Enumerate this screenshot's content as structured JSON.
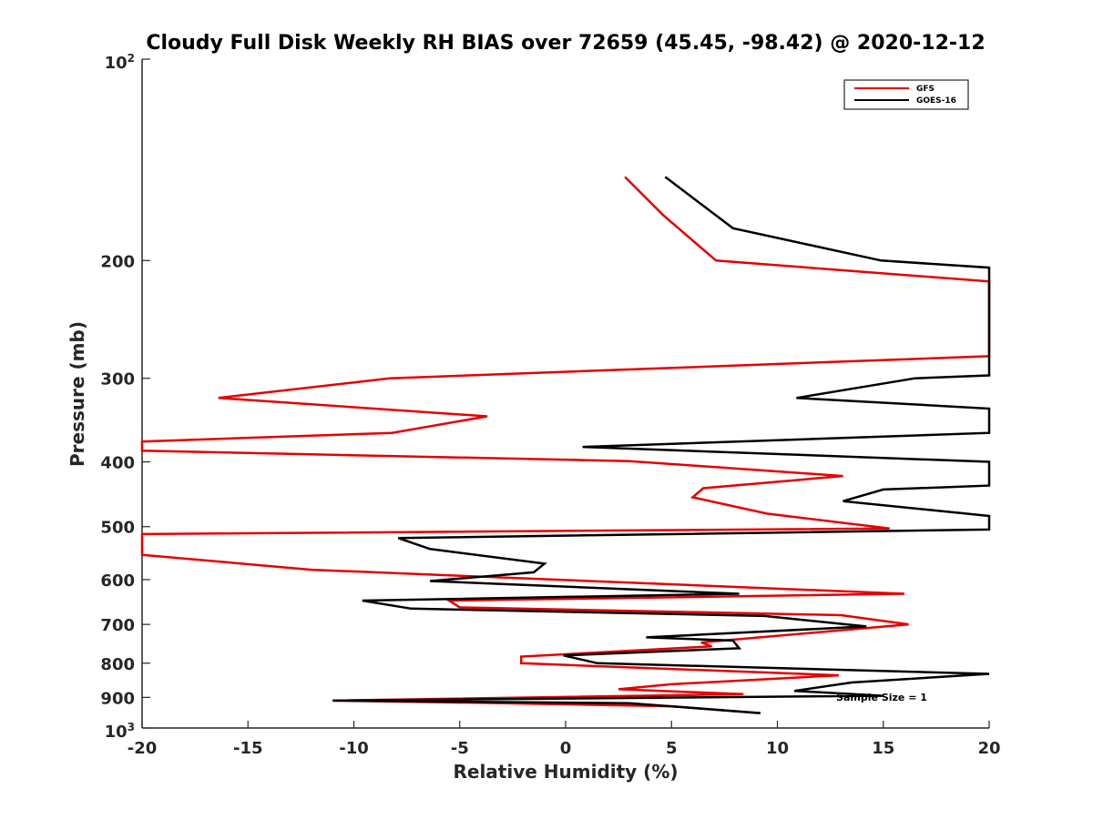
{
  "chart_data": {
    "type": "line",
    "title": "Cloudy Full Disk Weekly RH BIAS over 72659 (45.45, -98.42) @ 2020-12-12",
    "xlabel": "Relative Humidity (%)",
    "ylabel": "Pressure (mb)",
    "xlim": [
      -20,
      20
    ],
    "ylim": [
      100,
      1000
    ],
    "yscale": "log",
    "y_reversed": true,
    "grid": false,
    "legend_position": "top-right",
    "x_ticks": [
      "-20",
      "-15",
      "-10",
      "-5",
      "0",
      "5",
      "10",
      "15",
      "20"
    ],
    "y_ticks": [
      "200",
      "300",
      "400",
      "500",
      "600",
      "700",
      "800",
      "900"
    ],
    "y_tick_ends": {
      "top_base": "10",
      "top_exp": "2",
      "bottom_base": "10",
      "bottom_exp": "3"
    },
    "annotation": "Sample Size = 1",
    "series": [
      {
        "name": "GFS",
        "color": "#e50000",
        "points": [
          [
            2.8,
            150
          ],
          [
            4.6,
            171
          ],
          [
            7.1,
            200
          ],
          [
            20,
            215
          ],
          [
            20,
            278
          ],
          [
            -8.3,
            300
          ],
          [
            -16.4,
            321
          ],
          [
            -3.7,
            342
          ],
          [
            -8.2,
            362
          ],
          [
            -20,
            373
          ],
          [
            -20,
            385
          ],
          [
            3.0,
            399
          ],
          [
            13.1,
            420
          ],
          [
            6.5,
            438
          ],
          [
            6.0,
            452
          ],
          [
            9.5,
            478
          ],
          [
            15.3,
            503
          ],
          [
            -20,
            513
          ],
          [
            -20,
            551
          ],
          [
            -12,
            580
          ],
          [
            16.0,
            630
          ],
          [
            -5.5,
            645
          ],
          [
            -5.0,
            660
          ],
          [
            13.0,
            678
          ],
          [
            16.2,
            700
          ],
          [
            6.4,
            745
          ],
          [
            6.9,
            755
          ],
          [
            -2.1,
            782
          ],
          [
            -2.1,
            800
          ],
          [
            12.9,
            834
          ],
          [
            5.0,
            860
          ],
          [
            2.5,
            875
          ],
          [
            8.4,
            890
          ],
          [
            -11.0,
            910
          ],
          [
            -3.0,
            918
          ],
          [
            5.0,
            928
          ],
          [
            9.1,
            950
          ]
        ]
      },
      {
        "name": "GOES-16",
        "color": "#000000",
        "points": [
          [
            4.7,
            150
          ],
          [
            7.9,
            179
          ],
          [
            14.9,
            200
          ],
          [
            20,
            205
          ],
          [
            20,
            297
          ],
          [
            16.5,
            300
          ],
          [
            10.9,
            321
          ],
          [
            20,
            333
          ],
          [
            20,
            362
          ],
          [
            0.8,
            380
          ],
          [
            20,
            400
          ],
          [
            20,
            434
          ],
          [
            15.0,
            440
          ],
          [
            13.1,
            458
          ],
          [
            18.9,
            478
          ],
          [
            20,
            482
          ],
          [
            20,
            505
          ],
          [
            -7.9,
            520
          ],
          [
            -6.4,
            540
          ],
          [
            -1.0,
            568
          ],
          [
            -1.5,
            585
          ],
          [
            -6.4,
            603
          ],
          [
            8.2,
            630
          ],
          [
            -9.6,
            645
          ],
          [
            -7.3,
            663
          ],
          [
            9.4,
            680
          ],
          [
            14.2,
            705
          ],
          [
            3.8,
            732
          ],
          [
            7.9,
            740
          ],
          [
            8.2,
            760
          ],
          [
            -0.1,
            779
          ],
          [
            1.5,
            800
          ],
          [
            20,
            830
          ],
          [
            13.5,
            855
          ],
          [
            10.8,
            880
          ],
          [
            15.0,
            895
          ],
          [
            -11.0,
            910
          ],
          [
            3.0,
            918
          ],
          [
            9.2,
            950
          ]
        ]
      }
    ]
  }
}
